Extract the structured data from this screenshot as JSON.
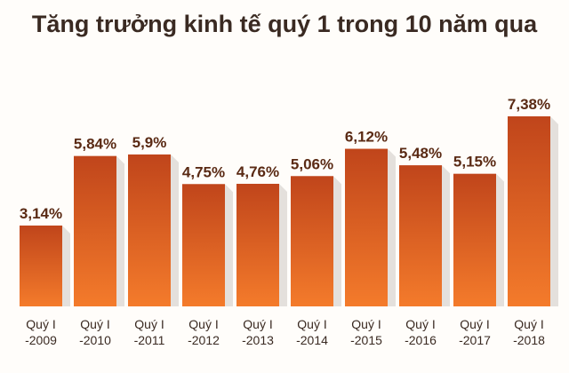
{
  "chart_data": {
    "type": "bar",
    "title": "Tăng trưởng kinh tế quý 1 trong 10 năm qua",
    "categories": [
      [
        "Quý I",
        "-2009"
      ],
      [
        "Quý I",
        "-2010"
      ],
      [
        "Quý I",
        "-2011"
      ],
      [
        "Quý I",
        "-2012"
      ],
      [
        "Quý I",
        "-2013"
      ],
      [
        "Quý I",
        "-2014"
      ],
      [
        "Quý I",
        "-2015"
      ],
      [
        "Quý I",
        "-2016"
      ],
      [
        "Quý I",
        "-2017"
      ],
      [
        "Quý I",
        "-2018"
      ]
    ],
    "values": [
      3.14,
      5.84,
      5.9,
      4.75,
      4.76,
      5.06,
      6.12,
      5.48,
      5.15,
      7.38
    ],
    "value_labels": [
      "3,14%",
      "5,84%",
      "5,9%",
      "4,75%",
      "4,76%",
      "5,06%",
      "6,12%",
      "5,48%",
      "5,15%",
      "7,38%"
    ],
    "color_top": "#c0451b",
    "color_bottom": "#f47b2b"
  }
}
